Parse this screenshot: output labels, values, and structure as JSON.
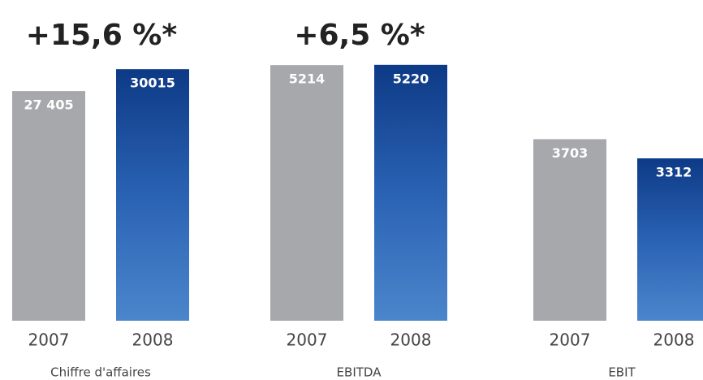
{
  "chart_data": [
    {
      "type": "bar",
      "title": "+15,6 %*",
      "xlabel": "Chiffre d'affaires",
      "categories": [
        "2007",
        "2008"
      ],
      "values": [
        27405,
        30015
      ],
      "value_labels": [
        "27 405",
        "30015"
      ],
      "colors": [
        "#a6a8ab",
        "#1d4f9e"
      ],
      "ylim": [
        0,
        31000
      ]
    },
    {
      "type": "bar",
      "title": "+6,5 %*",
      "xlabel": "EBITDA",
      "categories": [
        "2007",
        "2008"
      ],
      "values": [
        5214,
        5220
      ],
      "colors": [
        "#a6a8ab",
        "#1d4f9e"
      ],
      "ylim": [
        0,
        5300
      ]
    },
    {
      "type": "bar",
      "xlabel": "EBIT",
      "categories": [
        "2007",
        "2008"
      ],
      "values": [
        3703,
        3312
      ],
      "colors": [
        "#a6a8ab",
        "#1d4f9e"
      ],
      "ylim": [
        0,
        5300
      ]
    }
  ]
}
